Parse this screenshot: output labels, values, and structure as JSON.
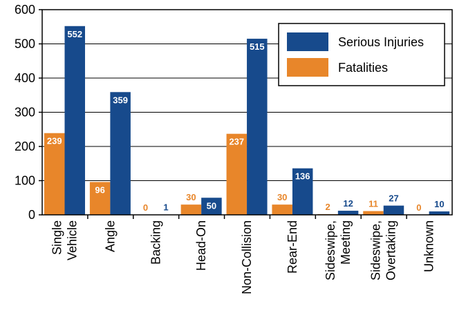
{
  "chart_data": {
    "type": "bar",
    "categories": [
      [
        "Single",
        "Vehicle"
      ],
      [
        "Angle"
      ],
      [
        "Backing"
      ],
      [
        "Head-On"
      ],
      [
        "Non-Collision"
      ],
      [
        "Rear-End"
      ],
      [
        "Sideswipe,",
        "Meeting"
      ],
      [
        "Sideswipe,",
        "Overtaking"
      ],
      [
        "Unknown"
      ]
    ],
    "series": [
      {
        "name": "Fatalities",
        "color": "#E8862A",
        "label_inside_color": "#ffffff",
        "label_outside_color": "#E8862A",
        "values": [
          239,
          96,
          0,
          30,
          237,
          30,
          2,
          11,
          0
        ]
      },
      {
        "name": "Serious Injuries",
        "color": "#174A8C",
        "label_inside_color": "#ffffff",
        "label_outside_color": "#174A8C",
        "values": [
          552,
          359,
          1,
          50,
          515,
          136,
          12,
          27,
          10
        ]
      }
    ],
    "ylim": [
      0,
      600
    ],
    "yticks": [
      0,
      100,
      200,
      300,
      400,
      500,
      600
    ],
    "grid": true,
    "legend": {
      "placement": "top-right",
      "order": [
        "Serious Injuries",
        "Fatalities"
      ]
    },
    "title": "",
    "xlabel": "",
    "ylabel": ""
  }
}
